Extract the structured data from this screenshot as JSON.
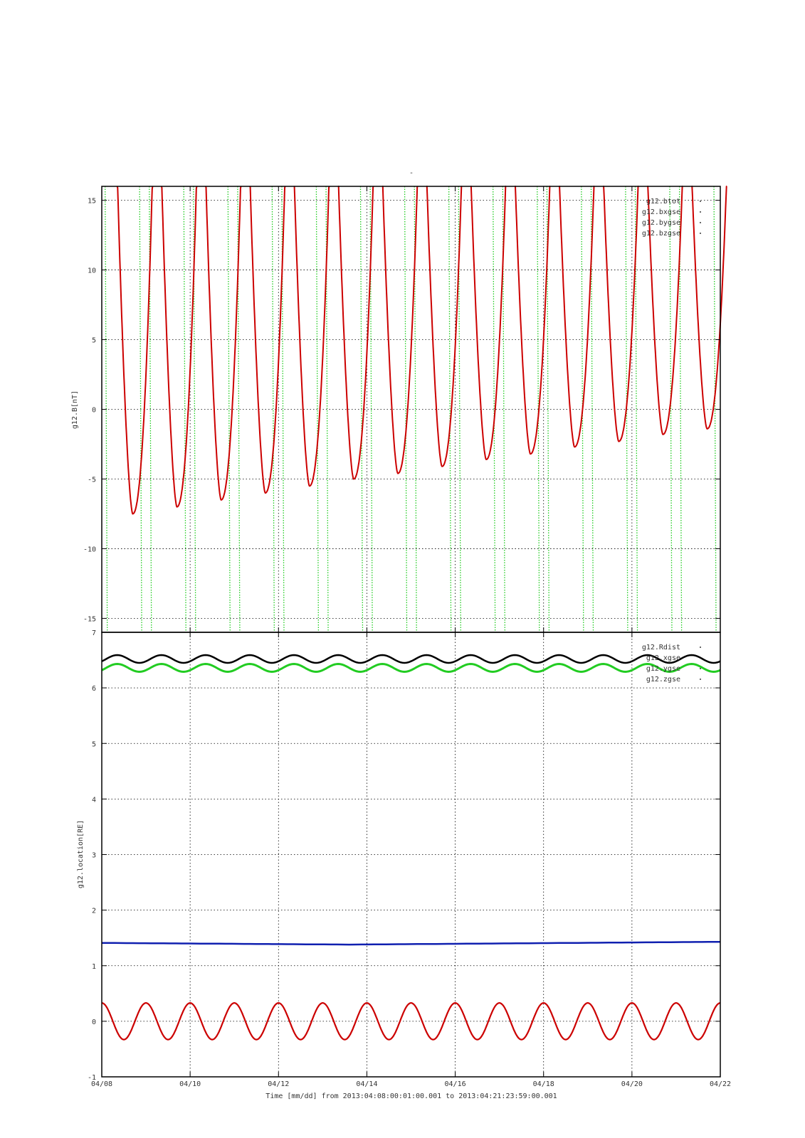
{
  "page": {
    "title_mark": "-"
  },
  "x_axis": {
    "label": "Time [mm/dd]  from 2013:04:08:00:01:00.001  to  2013:04:21:23:59:00.001",
    "ticks": [
      "04/08",
      "04/10",
      "04/12",
      "04/14",
      "04/16",
      "04/18",
      "04/20",
      "04/22"
    ]
  },
  "colors": {
    "red": "#cc0000",
    "green": "#22cc22",
    "blue": "#1020b0",
    "black": "#000000"
  },
  "chart_data": [
    {
      "type": "line",
      "ylabel": "g12.B[nT]",
      "ylim": [
        -16,
        16
      ],
      "yticks": [
        15,
        10,
        5,
        0,
        -5,
        -10,
        -15
      ],
      "xlim_days": [
        0,
        14
      ],
      "legend": {
        "placement": "top-right",
        "entries": [
          "g12.btot",
          "g12.bxgse",
          "g12.bygse",
          "g12.bzgse"
        ]
      },
      "series": [
        {
          "name": "g12.bygse",
          "color": "red",
          "description": "repeating daily cusps",
          "period_days": 1.0,
          "minima": [
            {
              "x": 0.7,
              "y": -7.5
            },
            {
              "x": 1.7,
              "y": -7.0
            },
            {
              "x": 2.7,
              "y": -6.5
            },
            {
              "x": 3.7,
              "y": -6.0
            },
            {
              "x": 4.7,
              "y": -5.5
            },
            {
              "x": 5.7,
              "y": -5.0
            },
            {
              "x": 6.7,
              "y": -4.6
            },
            {
              "x": 7.7,
              "y": -4.1
            },
            {
              "x": 8.7,
              "y": -3.6
            },
            {
              "x": 9.7,
              "y": -3.2
            },
            {
              "x": 10.7,
              "y": -2.7
            },
            {
              "x": 11.7,
              "y": -2.3
            },
            {
              "x": 12.7,
              "y": -1.8
            },
            {
              "x": 13.7,
              "y": -1.4
            }
          ]
        },
        {
          "name": "g12.bxgse",
          "color": "green",
          "description": "near-vertical lines crossing full range",
          "x_crossings": [
            0.1,
            0.88,
            1.1,
            1.88,
            2.1,
            2.88,
            3.1,
            3.88,
            4.1,
            4.88,
            5.1,
            5.88,
            6.1,
            6.88,
            7.1,
            7.88,
            8.1,
            8.88,
            9.1,
            9.88,
            10.1,
            10.88,
            11.1,
            11.88,
            12.1,
            12.88,
            13.1,
            13.88
          ]
        }
      ]
    },
    {
      "type": "line",
      "ylabel": "g12.location[RE]",
      "ylim": [
        -1,
        7
      ],
      "yticks": [
        7,
        6,
        5,
        4,
        3,
        2,
        1,
        0,
        -1
      ],
      "xlim_days": [
        0,
        14
      ],
      "legend": {
        "placement": "top-right",
        "entries": [
          "g12.Rdist",
          "g12.xgse",
          "g12.ygse",
          "g12.zgse"
        ]
      },
      "series": [
        {
          "name": "g12.Rdist",
          "color": "black",
          "mean": 6.52,
          "amplitude": 0.07,
          "period_days": 1.0
        },
        {
          "name": "g12.ygse",
          "color": "green",
          "mean": 6.36,
          "amplitude": 0.07,
          "period_days": 1.0
        },
        {
          "name": "g12.zgse",
          "color": "blue",
          "start": 1.41,
          "mid": 1.38,
          "end": 1.43
        },
        {
          "name": "g12.xgse",
          "color": "red",
          "mean": 0.0,
          "amplitude": 0.33,
          "period_days": 1.0
        }
      ]
    }
  ]
}
